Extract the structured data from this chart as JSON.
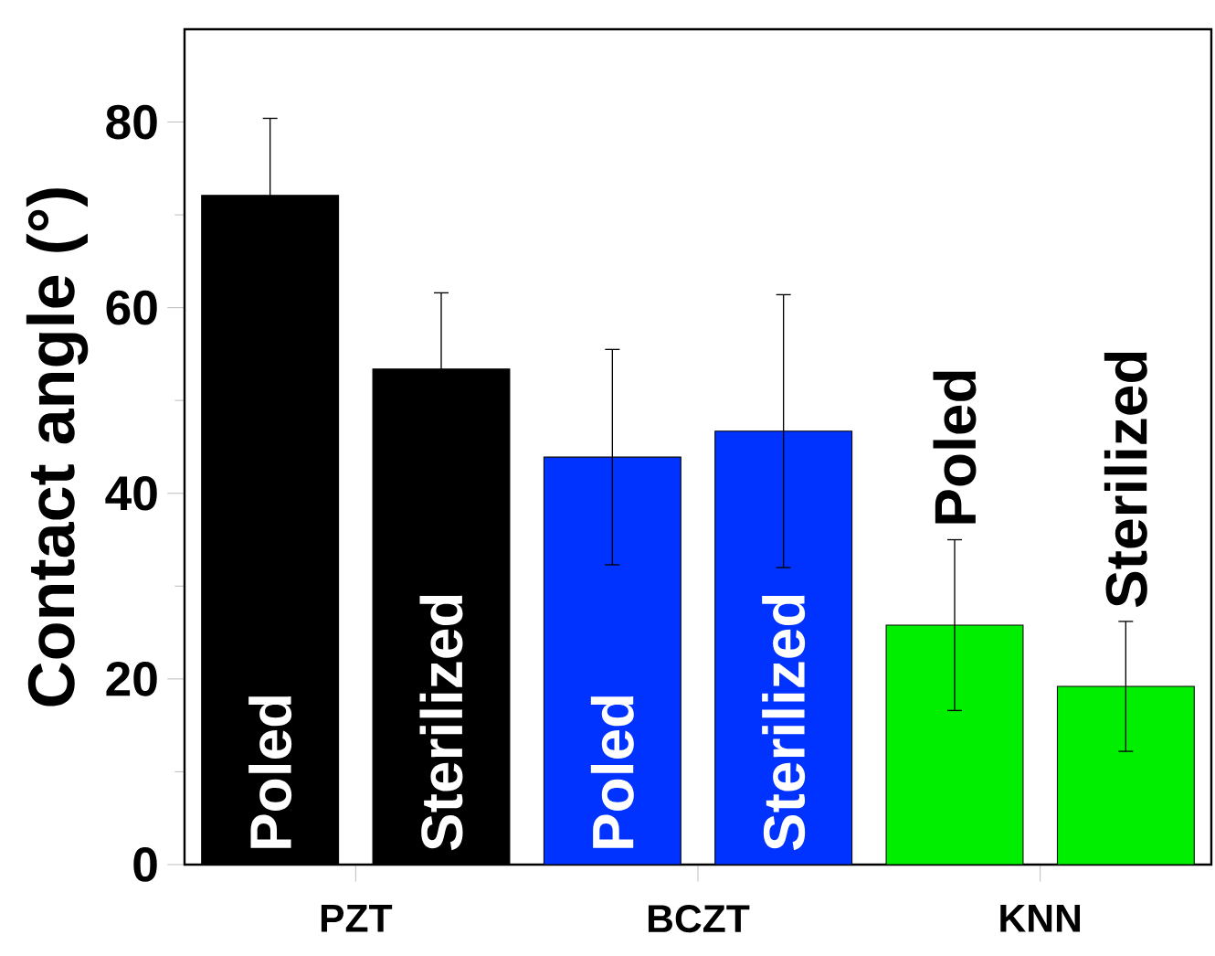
{
  "chart_data": {
    "type": "bar",
    "ylabel": "Contact angle (°)",
    "categories": [
      "PZT",
      "BCZT",
      "KNN"
    ],
    "ylim": [
      0,
      90
    ],
    "yticks": [
      0,
      20,
      40,
      60,
      80
    ],
    "series": [
      {
        "name": "Poled",
        "colors": [
          "#000000",
          "#0033ff",
          "#00ee00"
        ],
        "values": [
          72.1,
          43.9,
          25.8
        ],
        "errors": [
          8.3,
          11.6,
          9.2
        ]
      },
      {
        "name": "Sterilized",
        "colors": [
          "#000000",
          "#0033ff",
          "#00ee00"
        ],
        "values": [
          53.4,
          46.7,
          19.2
        ],
        "errors": [
          8.2,
          14.7,
          7.0
        ]
      }
    ]
  }
}
